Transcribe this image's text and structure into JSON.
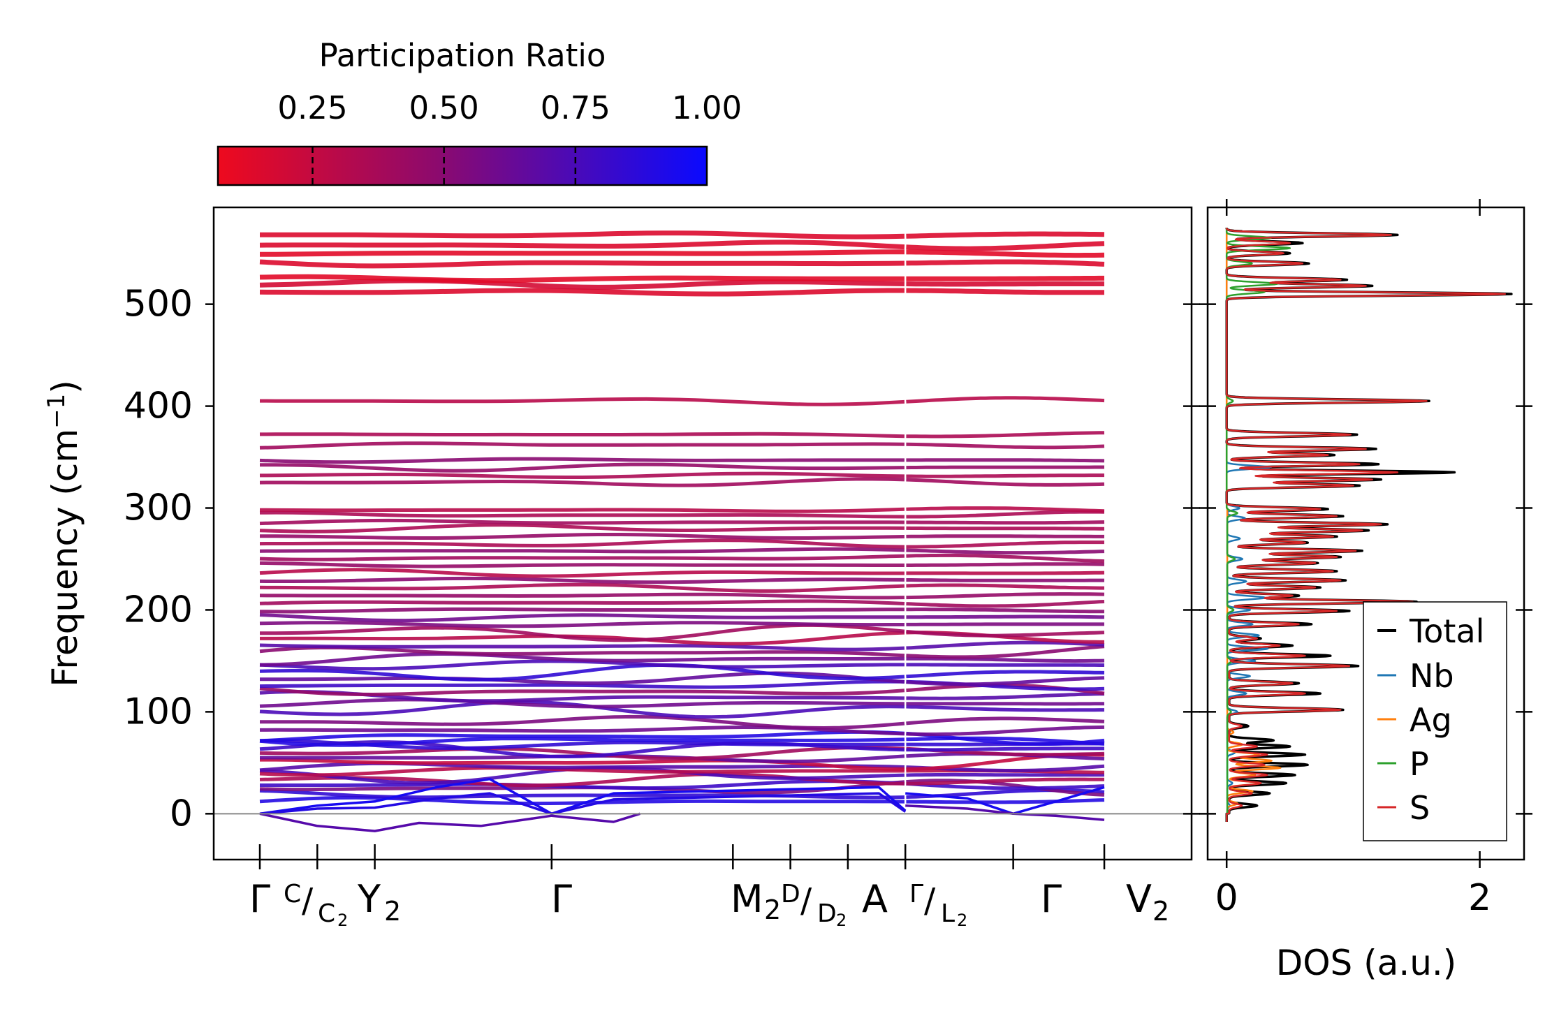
{
  "chart_data": [
    {
      "type": "line",
      "panel": "phonon-band-structure",
      "ylabel": "Frequency (cm⁻¹)",
      "ylabel_prefix": "Frequency (cm",
      "ylabel_sup": "−1",
      "ylabel_suffix": ")",
      "ylim": [
        -45,
        595
      ],
      "yticks": [
        0,
        100,
        200,
        300,
        400,
        500
      ],
      "ytick_labels": [
        "0",
        "100",
        "200",
        "300",
        "400",
        "500"
      ],
      "colorbar": {
        "label": "Participation Ratio",
        "range": [
          0.07,
          1.0
        ],
        "ticks": [
          0.25,
          0.5,
          0.75,
          1.0
        ],
        "tick_labels": [
          "0.25",
          "0.50",
          "0.75",
          "1.00"
        ],
        "color_low": "#ee0a1e",
        "color_mid": "#8c0a6e",
        "color_high": "#0a0aff"
      },
      "k_path": [
        {
          "label": "Γ",
          "pos": 0.0
        },
        {
          "label": "C/C₂",
          "pos": 0.065
        },
        {
          "label": "Y₂",
          "pos": 0.13
        },
        {
          "label": "Γ",
          "pos": 0.33
        },
        {
          "label": "M₂",
          "pos": 0.535
        },
        {
          "label": "D/D₂",
          "pos": 0.6
        },
        {
          "label": "A",
          "pos": 0.665
        },
        {
          "label": "Γ/L₂",
          "pos": 0.73
        },
        {
          "label": "Γ",
          "pos": 0.852
        },
        {
          "label": "V₂",
          "pos": 0.955
        }
      ],
      "k_labels": [
        "Γ",
        "C",
        "/",
        "C",
        "2",
        "Y",
        "2",
        "Γ",
        "M",
        "2",
        "D",
        "/",
        "D",
        "2",
        "A",
        "Γ",
        "/",
        "L",
        "2",
        "Γ",
        "V",
        "2"
      ],
      "path_break_pos": 0.73,
      "acoustic_branches": [
        {
          "name": "acoustic-1",
          "x": [
            0.0,
            0.065,
            0.13,
            0.2,
            0.26,
            0.33,
            0.4,
            0.5,
            0.6,
            0.7,
            0.73
          ],
          "y": [
            0,
            8,
            12,
            26,
            34,
            0,
            20,
            22,
            24,
            26,
            3
          ],
          "pr": 0.95
        },
        {
          "name": "acoustic-2",
          "x": [
            0.0,
            0.065,
            0.13,
            0.2,
            0.26,
            0.33,
            0.4,
            0.5,
            0.6,
            0.7,
            0.73
          ],
          "y": [
            0,
            5,
            6,
            15,
            20,
            0,
            14,
            16,
            18,
            20,
            2
          ],
          "pr": 0.9
        },
        {
          "name": "acoustic-3",
          "x": [
            0.0,
            0.065,
            0.13,
            0.18,
            0.25,
            0.33,
            0.4,
            0.43
          ],
          "y": [
            0,
            -12,
            -17,
            -9,
            -12,
            -2,
            -8,
            0
          ],
          "pr": 0.7
        },
        {
          "name": "acoustic-4",
          "x": [
            0.73,
            0.8,
            0.852,
            0.9,
            0.955
          ],
          "y": [
            20,
            15,
            0,
            12,
            26
          ],
          "pr": 0.95
        },
        {
          "name": "acoustic-5",
          "x": [
            0.73,
            0.8,
            0.852,
            0.9,
            0.955
          ],
          "y": [
            8,
            5,
            0,
            -2,
            -6
          ],
          "pr": 0.7
        }
      ],
      "optical_bands_cm1": [
        12,
        18,
        25,
        28,
        33,
        38,
        42,
        46,
        50,
        55,
        60,
        64,
        68,
        72,
        76,
        82,
        90,
        102,
        108,
        114,
        120,
        126,
        132,
        138,
        146,
        152,
        158,
        164,
        172,
        178,
        186,
        193,
        200,
        207,
        214,
        222,
        229,
        236,
        244,
        251,
        258,
        265,
        272,
        280,
        286,
        293,
        298,
        325,
        332,
        340,
        347,
        362,
        372,
        405,
        512,
        520,
        525,
        540,
        550,
        558,
        568
      ],
      "optical_pr": [
        0.9,
        0.85,
        0.55,
        0.8,
        0.35,
        0.75,
        0.3,
        0.7,
        0.25,
        0.65,
        0.4,
        0.8,
        0.85,
        0.9,
        0.9,
        0.6,
        0.55,
        0.75,
        0.6,
        0.7,
        0.45,
        0.8,
        0.65,
        0.85,
        0.75,
        0.6,
        0.5,
        0.7,
        0.3,
        0.4,
        0.55,
        0.6,
        0.5,
        0.4,
        0.45,
        0.35,
        0.5,
        0.3,
        0.45,
        0.4,
        0.5,
        0.35,
        0.45,
        0.35,
        0.4,
        0.35,
        0.3,
        0.4,
        0.35,
        0.45,
        0.5,
        0.4,
        0.35,
        0.3,
        0.15,
        0.18,
        0.12,
        0.15,
        0.12,
        0.15,
        0.15
      ]
    },
    {
      "type": "line",
      "panel": "dos",
      "xlabel": "DOS (a.u.)",
      "xlim": [
        -0.15,
        2.35
      ],
      "xticks": [
        0,
        2
      ],
      "xtick_labels": [
        "0",
        "2"
      ],
      "legend_position": "lower-right",
      "legend": [
        {
          "name": "Total",
          "color": "#000000"
        },
        {
          "name": "Nb",
          "color": "#1f77b4"
        },
        {
          "name": "Ag",
          "color": "#ff7f0e"
        },
        {
          "name": "P",
          "color": "#2ca02c"
        },
        {
          "name": "S",
          "color": "#d62728"
        }
      ],
      "series": [
        {
          "name": "Total",
          "color": "#000000",
          "peaks": [
            [
              8,
              0.22
            ],
            [
              20,
              0.32
            ],
            [
              30,
              0.45
            ],
            [
              38,
              0.52
            ],
            [
              48,
              0.62
            ],
            [
              58,
              0.6
            ],
            [
              66,
              0.48
            ],
            [
              72,
              0.35
            ],
            [
              86,
              0.15
            ],
            [
              102,
              0.9
            ],
            [
              118,
              0.72
            ],
            [
              128,
              0.55
            ],
            [
              145,
              1.02
            ],
            [
              155,
              0.8
            ],
            [
              165,
              0.5
            ],
            [
              172,
              0.25
            ],
            [
              186,
              0.65
            ],
            [
              199,
              0.95
            ],
            [
              208,
              1.48
            ],
            [
              214,
              0.55
            ],
            [
              222,
              0.72
            ],
            [
              229,
              0.92
            ],
            [
              238,
              0.85
            ],
            [
              246,
              0.7
            ],
            [
              252,
              0.88
            ],
            [
              258,
              1.05
            ],
            [
              266,
              0.62
            ],
            [
              272,
              0.85
            ],
            [
              278,
              1.1
            ],
            [
              284,
              1.25
            ],
            [
              292,
              0.9
            ],
            [
              299,
              0.78
            ],
            [
              322,
              1.05
            ],
            [
              328,
              1.22
            ],
            [
              335,
              1.8
            ],
            [
              343,
              1.2
            ],
            [
              352,
              0.85
            ],
            [
              358,
              1.18
            ],
            [
              372,
              1.03
            ],
            [
              405,
              1.6
            ],
            [
              510,
              2.25
            ],
            [
              518,
              1.15
            ],
            [
              524,
              0.95
            ],
            [
              540,
              0.65
            ],
            [
              550,
              0.5
            ],
            [
              560,
              0.6
            ],
            [
              568,
              1.35
            ]
          ]
        },
        {
          "name": "Nb",
          "color": "#1f77b4",
          "peaks": [
            [
              8,
              0.02
            ],
            [
              30,
              0.04
            ],
            [
              60,
              0.06
            ],
            [
              100,
              0.08
            ],
            [
              118,
              0.15
            ],
            [
              135,
              0.18
            ],
            [
              150,
              0.22
            ],
            [
              162,
              0.32
            ],
            [
              175,
              0.25
            ],
            [
              186,
              0.2
            ],
            [
              200,
              0.18
            ],
            [
              212,
              0.3
            ],
            [
              228,
              0.15
            ],
            [
              250,
              0.12
            ],
            [
              270,
              0.1
            ],
            [
              290,
              0.14
            ],
            [
              300,
              0.1
            ],
            [
              340,
              0.35
            ]
          ]
        },
        {
          "name": "Ag",
          "color": "#ff7f0e",
          "peaks": [
            [
              10,
              0.08
            ],
            [
              22,
              0.2
            ],
            [
              30,
              0.26
            ],
            [
              38,
              0.22
            ],
            [
              45,
              0.42
            ],
            [
              52,
              0.35
            ],
            [
              58,
              0.25
            ],
            [
              68,
              0.12
            ],
            [
              80,
              0.05
            ]
          ]
        },
        {
          "name": "P",
          "color": "#2ca02c",
          "peaks": [
            [
              100,
              0.03
            ],
            [
              150,
              0.04
            ],
            [
              200,
              0.05
            ],
            [
              250,
              0.06
            ],
            [
              295,
              0.08
            ],
            [
              405,
              0.05
            ],
            [
              512,
              0.3
            ],
            [
              520,
              0.4
            ],
            [
              540,
              0.2
            ],
            [
              555,
              0.5
            ],
            [
              565,
              0.35
            ]
          ]
        },
        {
          "name": "S",
          "color": "#d62728",
          "peaks": [
            [
              8,
              0.1
            ],
            [
              20,
              0.18
            ],
            [
              30,
              0.25
            ],
            [
              38,
              0.3
            ],
            [
              48,
              0.28
            ],
            [
              58,
              0.3
            ],
            [
              66,
              0.22
            ],
            [
              86,
              0.1
            ],
            [
              102,
              0.88
            ],
            [
              118,
              0.6
            ],
            [
              128,
              0.5
            ],
            [
              145,
              0.95
            ],
            [
              155,
              0.6
            ],
            [
              165,
              0.4
            ],
            [
              172,
              0.22
            ],
            [
              186,
              0.55
            ],
            [
              199,
              0.85
            ],
            [
              208,
              1.45
            ],
            [
              214,
              0.5
            ],
            [
              222,
              0.68
            ],
            [
              229,
              0.88
            ],
            [
              238,
              0.82
            ],
            [
              246,
              0.68
            ],
            [
              252,
              0.85
            ],
            [
              258,
              1.0
            ],
            [
              266,
              0.6
            ],
            [
              272,
              0.82
            ],
            [
              278,
              1.05
            ],
            [
              284,
              1.2
            ],
            [
              292,
              0.85
            ],
            [
              299,
              0.72
            ],
            [
              322,
              1.0
            ],
            [
              328,
              1.15
            ],
            [
              335,
              1.35
            ],
            [
              343,
              1.05
            ],
            [
              352,
              0.8
            ],
            [
              358,
              1.1
            ],
            [
              372,
              0.98
            ],
            [
              405,
              1.58
            ],
            [
              510,
              2.2
            ],
            [
              518,
              1.1
            ],
            [
              524,
              0.9
            ],
            [
              540,
              0.6
            ],
            [
              550,
              0.45
            ],
            [
              560,
              0.5
            ],
            [
              568,
              1.3
            ]
          ]
        }
      ]
    }
  ]
}
